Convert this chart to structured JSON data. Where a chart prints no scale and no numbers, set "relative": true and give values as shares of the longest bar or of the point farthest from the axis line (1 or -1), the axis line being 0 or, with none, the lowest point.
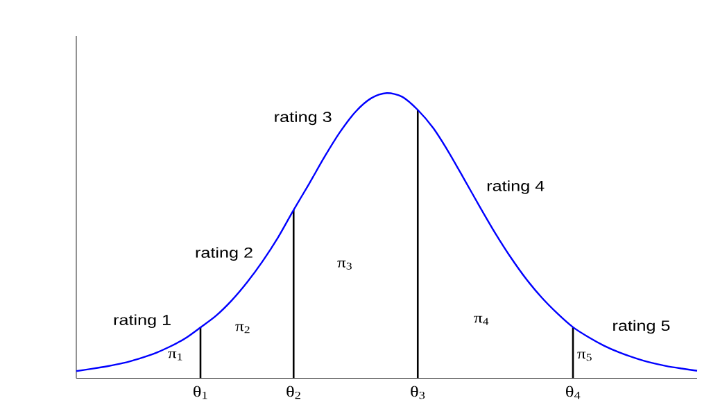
{
  "chart_data": {
    "type": "line",
    "relative": true,
    "categories": [
      null,
      null,
      null,
      null,
      null,
      null,
      null,
      null,
      "θ$_{1}$",
      null,
      null,
      null,
      null,
      null,
      "θ$_{2}$",
      null,
      null,
      null,
      null,
      null,
      null,
      null,
      "θ$_{3}$",
      null,
      null,
      null,
      null,
      null,
      null,
      null,
      null,
      null,
      "θ$_{4}$",
      null,
      null,
      null,
      null,
      null,
      null,
      null,
      null
    ],
    "series": [
      {
        "type": "bar",
        "color": "#000000",
        "values": [
          null,
          null,
          null,
          null,
          null,
          null,
          null,
          null,
          0.178,
          null,
          null,
          null,
          null,
          null,
          0.59,
          null,
          null,
          null,
          null,
          null,
          null,
          null,
          0.941,
          null,
          null,
          null,
          null,
          null,
          null,
          null,
          null,
          null,
          0.179,
          null,
          null,
          null,
          null,
          null,
          null,
          null,
          null
        ]
      },
      {
        "color": "#0000ff",
        "values": [
          0.025,
          0.033,
          0.042,
          0.053,
          0.068,
          0.086,
          0.11,
          0.139,
          0.178,
          0.219,
          0.272,
          0.336,
          0.41,
          0.494,
          0.59,
          0.682,
          0.777,
          0.864,
          0.935,
          0.982,
          1,
          0.987,
          0.941,
          0.877,
          0.792,
          0.697,
          0.601,
          0.508,
          0.423,
          0.347,
          0.282,
          0.227,
          0.179,
          0.144,
          0.114,
          0.09,
          0.071,
          0.055,
          0.043,
          0.034,
          0.026
        ]
      }
    ],
    "annotations": [
      "rating 1",
      "rating 2",
      "rating 3",
      "rating 4",
      "rating 5",
      "π$_{1}$",
      "π$_{2}$",
      "π$_{3}$",
      "π$_{4}$",
      "π$_{5}$"
    ]
  }
}
